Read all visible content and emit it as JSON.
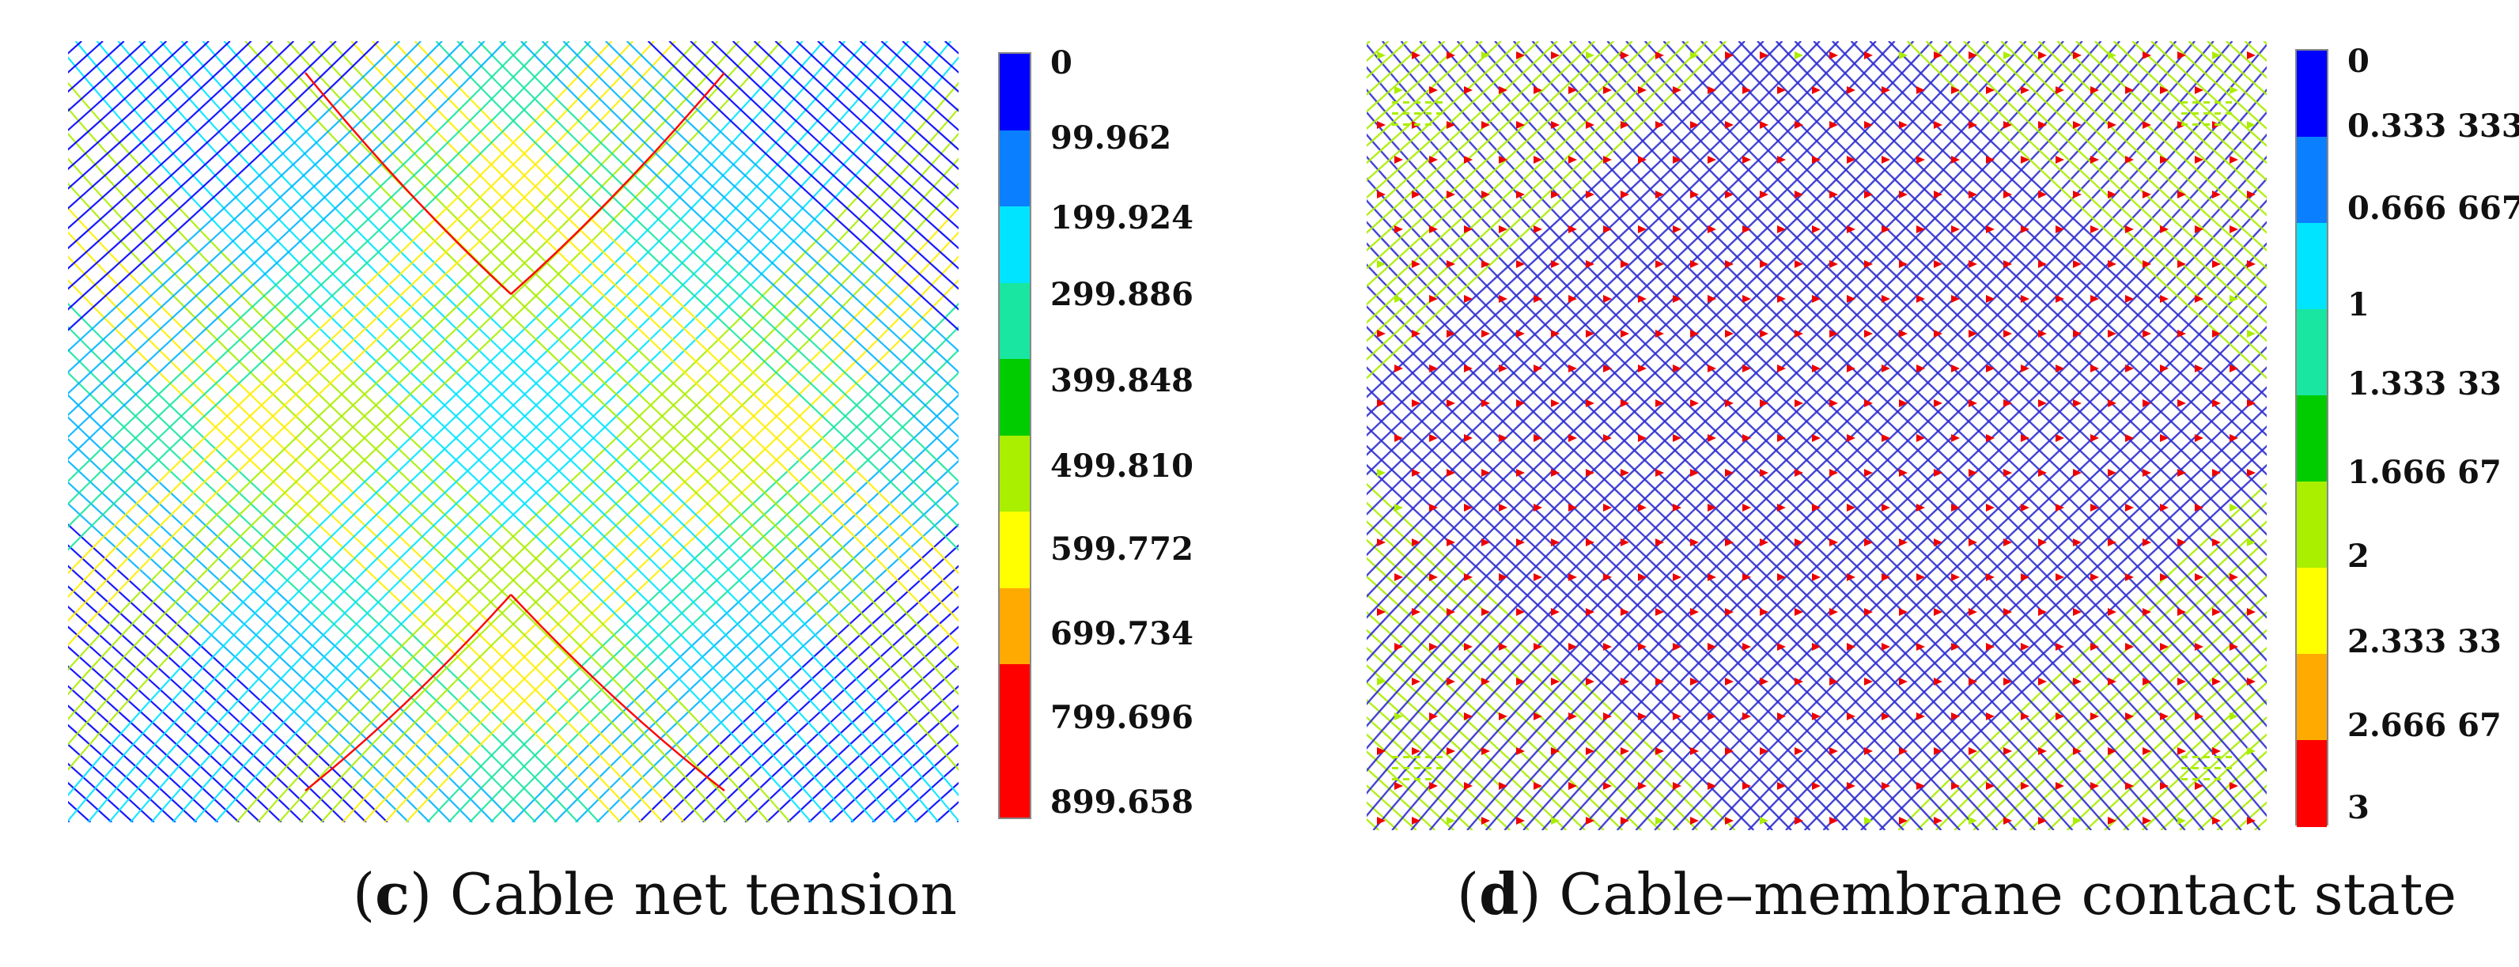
{
  "panels": [
    {
      "letter": "c",
      "title": "Cable net tension",
      "legend": [
        "0",
        "99.962",
        "199.924",
        "299.886",
        "399.848",
        "499.810",
        "599.772",
        "699.734",
        "799.696",
        "899.658"
      ]
    },
    {
      "letter": "d",
      "title": "Cable–membrane contact state",
      "legend": [
        "0",
        "0.333 333",
        "0.666 667",
        "1",
        "1.333 33",
        "1.666 67",
        "2",
        "2.333 33",
        "2.666 67",
        "3"
      ]
    }
  ],
  "colors": {
    "scale": [
      "#0000ff",
      "#0a7fff",
      "#00b4ff",
      "#00ffff",
      "#19e6a0",
      "#00cc00",
      "#aaee00",
      "#ffff00",
      "#ffaa00",
      "#ff0000"
    ],
    "mesh_c_center": "#00cfe0",
    "mesh_c_mid": "#ffee00",
    "mesh_c_red": "#ff0000",
    "mesh_d_lines": "#3030d0",
    "mesh_d_marker": "#ee0000",
    "mesh_d_green": "#aaee00"
  }
}
